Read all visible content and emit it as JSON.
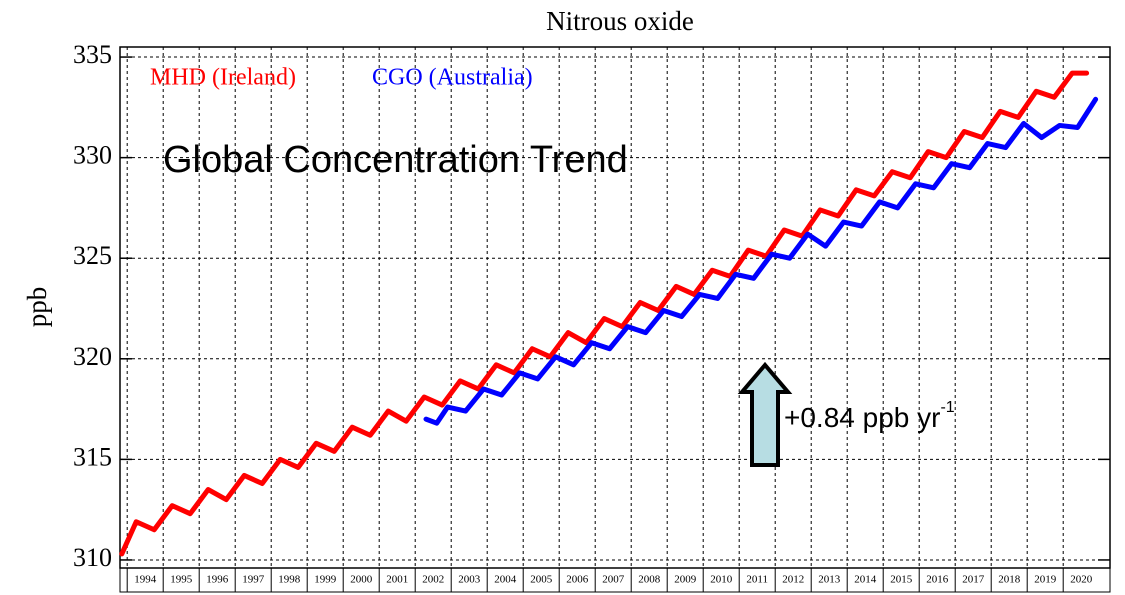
{
  "chart_data": {
    "type": "line",
    "title": "Nitrous oxide",
    "ylabel": "ppb",
    "annotation": "Global Concentration Trend",
    "rate_text": "+0.84 ppb yr",
    "rate_sup": "-1",
    "xlim": [
      1993.8,
      2021.3
    ],
    "ylim": [
      309.6,
      335.5
    ],
    "yticks": [
      310,
      315,
      320,
      325,
      330,
      335
    ],
    "xticks": [
      1994,
      1995,
      1996,
      1997,
      1998,
      1999,
      2000,
      2001,
      2002,
      2003,
      2004,
      2005,
      2006,
      2007,
      2008,
      2009,
      2010,
      2011,
      2012,
      2013,
      2014,
      2015,
      2016,
      2017,
      2018,
      2019,
      2020
    ],
    "grid": true,
    "series": [
      {
        "name": "MHD (Ireland)",
        "color": "#ff0000",
        "x": [
          1993.85,
          1994.25,
          1994.75,
          1995.25,
          1995.75,
          1996.25,
          1996.75,
          1997.25,
          1997.75,
          1998.25,
          1998.75,
          1999.25,
          1999.75,
          2000.25,
          2000.75,
          2001.25,
          2001.75,
          2002.25,
          2002.75,
          2003.25,
          2003.75,
          2004.25,
          2004.75,
          2005.25,
          2005.75,
          2006.25,
          2006.75,
          2007.25,
          2007.75,
          2008.25,
          2008.75,
          2009.25,
          2009.75,
          2010.25,
          2010.75,
          2011.25,
          2011.75,
          2012.25,
          2012.75,
          2013.25,
          2013.75,
          2014.25,
          2014.75,
          2015.25,
          2015.75,
          2016.25,
          2016.75,
          2017.25,
          2017.75,
          2018.25,
          2018.75,
          2019.25,
          2019.75,
          2020.25,
          2020.65
        ],
        "values": [
          310.3,
          311.9,
          311.5,
          312.7,
          312.3,
          313.5,
          313.0,
          314.2,
          313.8,
          315.0,
          314.6,
          315.8,
          315.4,
          316.6,
          316.2,
          317.4,
          316.9,
          318.1,
          317.7,
          318.9,
          318.5,
          319.7,
          319.3,
          320.5,
          320.1,
          321.3,
          320.8,
          322.0,
          321.6,
          322.8,
          322.4,
          323.6,
          323.2,
          324.4,
          324.1,
          325.4,
          325.1,
          326.4,
          326.1,
          327.4,
          327.1,
          328.4,
          328.1,
          329.3,
          329.0,
          330.3,
          330.0,
          331.3,
          331.0,
          332.3,
          332.0,
          333.3,
          333.0,
          334.2,
          334.2
        ]
      },
      {
        "name": "CGO (Australia)",
        "color": "#0000ff",
        "x": [
          2002.3,
          2002.6,
          2002.9,
          2003.4,
          2003.9,
          2004.4,
          2004.9,
          2005.4,
          2005.9,
          2006.4,
          2006.9,
          2007.4,
          2007.9,
          2008.4,
          2008.9,
          2009.4,
          2009.9,
          2010.4,
          2010.9,
          2011.4,
          2011.9,
          2012.4,
          2012.9,
          2013.4,
          2013.9,
          2014.4,
          2014.9,
          2015.4,
          2015.9,
          2016.4,
          2016.9,
          2017.4,
          2017.9,
          2018.4,
          2018.9,
          2019.4,
          2019.9,
          2020.4,
          2020.9
        ],
        "values": [
          317.0,
          316.8,
          317.6,
          317.4,
          318.5,
          318.2,
          319.3,
          319.0,
          320.1,
          319.7,
          320.8,
          320.5,
          321.6,
          321.3,
          322.4,
          322.1,
          323.2,
          323.0,
          324.2,
          324.0,
          325.2,
          325.0,
          326.2,
          325.6,
          326.8,
          326.6,
          327.8,
          327.5,
          328.7,
          328.5,
          329.7,
          329.5,
          330.7,
          330.5,
          331.7,
          331.0,
          331.6,
          331.5,
          332.9
        ]
      }
    ]
  }
}
